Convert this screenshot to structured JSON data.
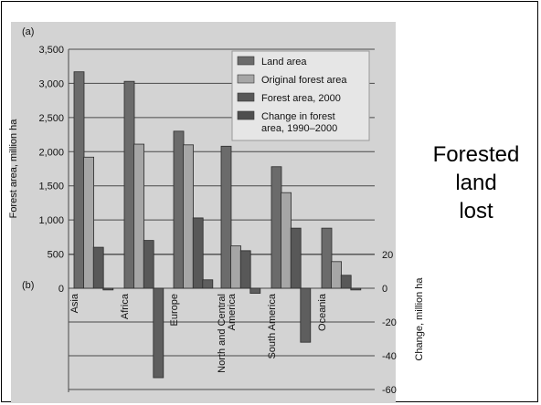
{
  "side_title": [
    "Forested",
    "land",
    "lost"
  ],
  "chart_data": {
    "type": "bar",
    "categories": [
      "Asia",
      "Africa",
      "Europe",
      "North and Central America",
      "South America",
      "Oceania"
    ],
    "category_lines": [
      [
        "Asia"
      ],
      [
        "Africa"
      ],
      [
        "Europe"
      ],
      [
        "North and Central",
        "America"
      ],
      [
        "South America"
      ],
      [
        "Oceania"
      ]
    ],
    "panel_labels": [
      "(a)",
      "(b)"
    ],
    "top": {
      "ylabel": "Forest area, million ha",
      "ylim": [
        0,
        3500
      ],
      "yticks": [
        0,
        500,
        1000,
        1500,
        2000,
        2500,
        3000,
        3500
      ],
      "ytick_labels": [
        "0",
        "500",
        "1,000",
        "1,500",
        "2,000",
        "2,500",
        "3,000",
        "3,500"
      ],
      "series": [
        {
          "name": "Land area",
          "values": [
            3170,
            3030,
            2300,
            2080,
            1780,
            880
          ],
          "color": "#6b6b6b"
        },
        {
          "name": "Original forest area",
          "values": [
            1920,
            2110,
            2100,
            620,
            1400,
            390
          ],
          "color": "#a6a6a6"
        },
        {
          "name": "Forest area, 2000",
          "values": [
            600,
            700,
            1030,
            550,
            880,
            190
          ],
          "color": "#585858"
        }
      ]
    },
    "bottom": {
      "ylabel": "Change, million ha",
      "ylim": [
        -60,
        20
      ],
      "yticks": [
        20,
        0,
        -20,
        -40,
        -60
      ],
      "ytick_labels": [
        "20",
        "0",
        "-20",
        "-40",
        "-60"
      ],
      "series": [
        {
          "name": "Change in forest area, 1990–2000",
          "values": [
            -1,
            -53,
            5,
            -3,
            -32,
            -1
          ],
          "color": "#5e5e5e"
        }
      ]
    },
    "legend": {
      "placement": "top-right",
      "entries": [
        {
          "lines": [
            "Land area"
          ],
          "color": "#6b6b6b"
        },
        {
          "lines": [
            "Original forest area"
          ],
          "color": "#a6a6a6"
        },
        {
          "lines": [
            "Forest area, 2000"
          ],
          "color": "#585858"
        },
        {
          "lines": [
            "Change in forest",
            "area, 1990–2000"
          ],
          "color": "#4e4e4e"
        }
      ]
    }
  }
}
